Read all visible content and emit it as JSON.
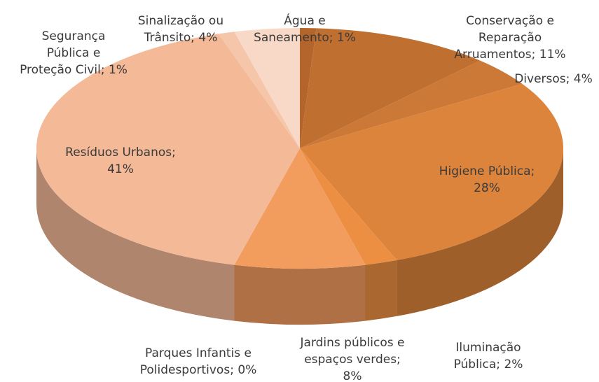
{
  "chart_data": {
    "type": "pie3d",
    "categories": [
      "Água e Saneamento",
      "Conservação e Reparação Arruamentos",
      "Diversos",
      "Higiene Pública",
      "Iluminação Pública",
      "Jardins públicos e espaços verdes",
      "Parques Infantis e Polidesportivos",
      "Resíduos Urbanos",
      "Segurança Pública e Proteção Civil",
      "Sinalização ou Trânsito"
    ],
    "values": [
      1,
      11,
      4,
      28,
      2,
      8,
      0,
      41,
      1,
      4
    ],
    "value_labels": [
      "Água e\nSaneamento; 1%",
      "Conservação e\nReparação\nArruamentos; 11%",
      "Diversos; 4%",
      "Higiene Pública;\n28%",
      "Iluminação\nPública; 2%",
      "Jardins públicos e\nespaços verdes;\n8%",
      "Parques Infantis e\nPolidesportivos; 0%",
      "Resíduos Urbanos;\n41%",
      "Segurança\nPública e\nProteção Civil; 1%",
      "Sinalização ou\nTrânsito; 4%"
    ],
    "colors": [
      "#b3652c",
      "#bf6f30",
      "#cc7837",
      "#dd843c",
      "#ec8f42",
      "#f29c5e",
      "#f4a878",
      "#f4b997",
      "#f6c6aa",
      "#f8d9c8"
    ]
  }
}
